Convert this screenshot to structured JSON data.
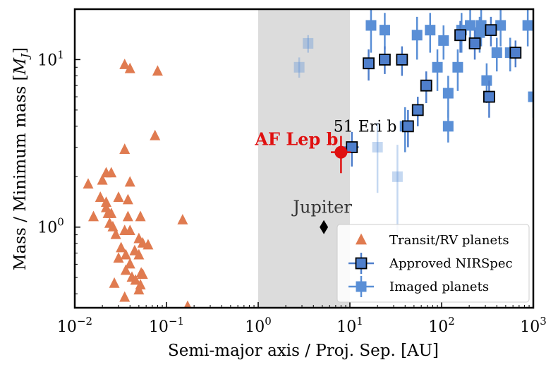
{
  "chart_data": {
    "type": "scatter",
    "xscale": "log",
    "yscale": "log",
    "xlim": [
      0.01,
      1000
    ],
    "ylim": [
      0.33,
      20
    ],
    "xlabel": "Semi-major axis / Proj. Sep. [AU]",
    "ylabel": "Mass / Minimum mass [M_J]",
    "x_ticks": [
      {
        "value": 0.01,
        "base": "10",
        "exp": "−2"
      },
      {
        "value": 0.1,
        "base": "10",
        "exp": "−1"
      },
      {
        "value": 1,
        "base": "10",
        "exp": "0"
      },
      {
        "value": 10,
        "base": "10",
        "exp": "1"
      },
      {
        "value": 100,
        "base": "10",
        "exp": "2"
      },
      {
        "value": 1000,
        "base": "10",
        "exp": "3"
      }
    ],
    "y_ticks": [
      {
        "value": 1,
        "base": "10",
        "exp": "0"
      },
      {
        "value": 10,
        "base": "10",
        "exp": "1"
      }
    ],
    "shaded_region": {
      "x": [
        1,
        10
      ],
      "color": "#dcdcdc"
    },
    "colors": {
      "transit": "#e07b50",
      "nirspec": "#4f7fcc",
      "imaged": "#5a8fd6",
      "af_lep": "#e01010",
      "jupiter": "#000000"
    },
    "legend": {
      "position": "lower right",
      "entries": [
        "Transit/RV planets",
        "Approved NIRSpec",
        "Imaged planets"
      ]
    },
    "series": [
      {
        "name": "Transit/RV planets",
        "marker": "triangle",
        "points": [
          [
            0.035,
            9.3
          ],
          [
            0.04,
            8.8
          ],
          [
            0.08,
            8.5
          ],
          [
            0.075,
            3.5
          ],
          [
            0.035,
            2.9
          ],
          [
            0.022,
            2.1
          ],
          [
            0.025,
            2.1
          ],
          [
            0.02,
            1.9
          ],
          [
            0.04,
            1.85
          ],
          [
            0.014,
            1.8
          ],
          [
            0.019,
            1.5
          ],
          [
            0.03,
            1.5
          ],
          [
            0.022,
            1.4
          ],
          [
            0.038,
            1.45
          ],
          [
            0.022,
            1.3
          ],
          [
            0.023,
            1.2
          ],
          [
            0.025,
            1.2
          ],
          [
            0.016,
            1.15
          ],
          [
            0.038,
            1.15
          ],
          [
            0.052,
            1.15
          ],
          [
            0.15,
            1.1
          ],
          [
            0.024,
            1.05
          ],
          [
            0.026,
            1.0
          ],
          [
            0.035,
            0.95
          ],
          [
            0.04,
            0.95
          ],
          [
            0.028,
            0.9
          ],
          [
            0.05,
            0.85
          ],
          [
            0.055,
            0.8
          ],
          [
            0.063,
            0.78
          ],
          [
            0.032,
            0.75
          ],
          [
            0.045,
            0.72
          ],
          [
            0.036,
            0.68
          ],
          [
            0.05,
            0.68
          ],
          [
            0.03,
            0.65
          ],
          [
            0.04,
            0.6
          ],
          [
            0.036,
            0.55
          ],
          [
            0.053,
            0.53
          ],
          [
            0.042,
            0.5
          ],
          [
            0.055,
            0.52
          ],
          [
            0.046,
            0.48
          ],
          [
            0.027,
            0.46
          ],
          [
            0.052,
            0.45
          ],
          [
            0.05,
            0.42
          ],
          [
            0.035,
            0.38
          ],
          [
            0.17,
            0.335
          ]
        ]
      },
      {
        "name": "Approved NIRSpec",
        "marker": "square",
        "points": [
          {
            "x": 10.5,
            "y": 3.0,
            "ylo": 2.3,
            "yhi": 3.7,
            "xlo": 8.5,
            "xhi": 12.5
          },
          {
            "x": 16,
            "y": 9.5,
            "ylo": 7.5,
            "yhi": 11.5
          },
          {
            "x": 24,
            "y": 10,
            "ylo": 8.2,
            "yhi": 12
          },
          {
            "x": 37,
            "y": 10,
            "ylo": 8,
            "yhi": 12
          },
          {
            "x": 43,
            "y": 4.0,
            "ylo": 3.0,
            "yhi": 5.0
          },
          {
            "x": 55,
            "y": 5.0,
            "ylo": 4.0,
            "yhi": 6.0
          },
          {
            "x": 68,
            "y": 7.0,
            "ylo": 5.5,
            "yhi": 8.5
          },
          {
            "x": 160,
            "y": 14,
            "ylo": 11,
            "yhi": 17
          },
          {
            "x": 230,
            "y": 12.5,
            "ylo": 10,
            "yhi": 15
          },
          {
            "x": 330,
            "y": 6.0,
            "ylo": 4.5,
            "yhi": 7.5
          },
          {
            "x": 345,
            "y": 15,
            "ylo": 12,
            "yhi": 18
          },
          {
            "x": 640,
            "y": 11,
            "ylo": 9,
            "yhi": 13
          }
        ]
      },
      {
        "name": "Imaged planets",
        "marker": "square",
        "points": [
          {
            "x": 2.8,
            "y": 9.0,
            "ylo": 7.8,
            "yhi": 10.3,
            "faded": true
          },
          {
            "x": 3.5,
            "y": 12.5,
            "ylo": 11,
            "yhi": 14,
            "faded": true
          },
          {
            "x": 20,
            "y": 3.0,
            "ylo": 1.6,
            "yhi": 4.2,
            "faded": true
          },
          {
            "x": 33,
            "y": 2.0,
            "ylo": 0.9,
            "yhi": 3.1,
            "faded": true
          },
          {
            "x": 17,
            "y": 16,
            "ylo": 11,
            "yhi": 20
          },
          {
            "x": 24,
            "y": 15,
            "ylo": 11.5,
            "yhi": 19
          },
          {
            "x": 54,
            "y": 14,
            "ylo": 10,
            "yhi": 18
          },
          {
            "x": 75,
            "y": 15,
            "ylo": 11,
            "yhi": 19
          },
          {
            "x": 90,
            "y": 9.0,
            "ylo": 6.5,
            "yhi": 11.5
          },
          {
            "x": 105,
            "y": 13,
            "ylo": 10,
            "yhi": 16
          },
          {
            "x": 118,
            "y": 6.3,
            "ylo": 4.5,
            "yhi": 8
          },
          {
            "x": 150,
            "y": 9.0,
            "ylo": 6.5,
            "yhi": 11.5
          },
          {
            "x": 165,
            "y": 15,
            "ylo": 11,
            "yhi": 19
          },
          {
            "x": 205,
            "y": 16,
            "ylo": 12,
            "yhi": 20
          },
          {
            "x": 260,
            "y": 14.5,
            "ylo": 11,
            "yhi": 18
          },
          {
            "x": 270,
            "y": 16,
            "ylo": 12,
            "yhi": 20
          },
          {
            "x": 310,
            "y": 7.5,
            "ylo": 5.5,
            "yhi": 9.5
          },
          {
            "x": 400,
            "y": 11,
            "ylo": 8.5,
            "yhi": 13.5
          },
          {
            "x": 440,
            "y": 16,
            "ylo": 12,
            "yhi": 20
          },
          {
            "x": 560,
            "y": 11,
            "ylo": 8.5,
            "yhi": 13.5
          },
          {
            "x": 870,
            "y": 16,
            "ylo": 12,
            "yhi": 20
          },
          {
            "x": 1000,
            "y": 6.0,
            "ylo": 4.5,
            "yhi": 7.5
          },
          {
            "x": 118,
            "y": 4.0,
            "ylo": 3.2,
            "yhi": 5.0
          },
          {
            "x": 40,
            "y": 4.0,
            "ylo": 2.8,
            "yhi": 5.2
          }
        ]
      }
    ],
    "highlights": [
      {
        "name": "AF Lep b",
        "x": 8.0,
        "y": 2.8,
        "xlo": 6.2,
        "xhi": 10.2,
        "ylo": 2.1,
        "yhi": 3.5
      },
      {
        "name": "Jupiter",
        "x": 5.2,
        "y": 1.0
      }
    ],
    "annotations": {
      "af_lep": "AF Lep b",
      "eri": "51 Eri b",
      "jupiter": "Jupiter"
    }
  }
}
